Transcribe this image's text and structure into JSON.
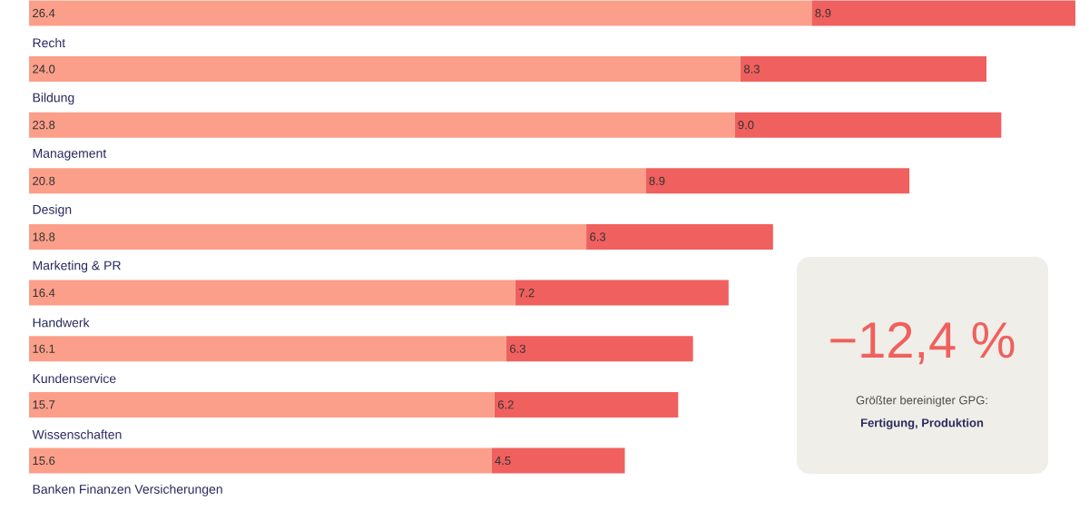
{
  "chart_data": {
    "type": "bar",
    "orientation": "horizontal",
    "stacked": true,
    "categories": [
      null,
      "Recht",
      "Bildung",
      "Management",
      "Design",
      "Marketing & PR",
      "Handwerk",
      "Kundenservice",
      "Wissenschaften",
      "Banken Finanzen Versicherungen"
    ],
    "series": [
      {
        "color": "#fb9f8a",
        "values": [
          26.4,
          24.0,
          23.8,
          20.8,
          18.8,
          16.4,
          16.1,
          15.7,
          15.6,
          null
        ],
        "value_labels": [
          "26.4",
          "24.0",
          "23.8",
          "20.8",
          "18.8",
          "16.4",
          "16.1",
          "15.7",
          "15.6",
          null
        ]
      },
      {
        "color": "#f0605e",
        "values": [
          8.9,
          8.3,
          9.0,
          8.9,
          6.3,
          7.2,
          6.3,
          6.2,
          4.5,
          null
        ],
        "value_labels": [
          "8.9",
          "8.3",
          "9.0",
          "8.9",
          "6.3",
          "7.2",
          "6.3",
          "6.2",
          "4.5",
          null
        ]
      }
    ],
    "annotations": [
      "−12,4 %",
      "Größter bereinigter GPG:",
      "Fertigung, Produktion"
    ]
  }
}
